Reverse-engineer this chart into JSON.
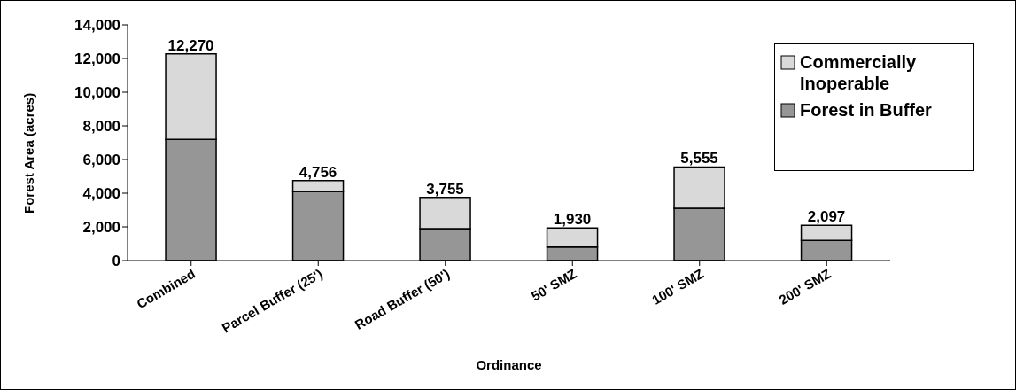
{
  "chart_data": {
    "type": "bar",
    "stacked": true,
    "xlabel": "Ordinance",
    "ylabel": "Forest Area (acres)",
    "categories": [
      "Combined",
      "Parcel Buffer (25')",
      "Road Buffer (50')",
      "50' SMZ",
      "100' SMZ",
      "200' SMZ"
    ],
    "series": [
      {
        "name": "Forest in Buffer",
        "color": "#969696",
        "values": [
          7200,
          4100,
          1900,
          800,
          3100,
          1200
        ]
      },
      {
        "name": "Commercially Inoperable",
        "color": "#d9d9d9",
        "values": [
          5070,
          656,
          1855,
          1130,
          2455,
          897
        ]
      }
    ],
    "totals": [
      "12,270",
      "4,756",
      "3,755",
      "1,930",
      "5,555",
      "2,097"
    ],
    "ylim": [
      0,
      14000
    ],
    "yticks": [
      {
        "value": 0,
        "label": "0"
      },
      {
        "value": 2000,
        "label": "2,000"
      },
      {
        "value": 4000,
        "label": "4,000"
      },
      {
        "value": 6000,
        "label": "6,000"
      },
      {
        "value": 8000,
        "label": "8,000"
      },
      {
        "value": 10000,
        "label": "10,000"
      },
      {
        "value": 12000,
        "label": "12,000"
      },
      {
        "value": 14000,
        "label": "14,000"
      }
    ],
    "grid": false,
    "legend": "top right"
  }
}
